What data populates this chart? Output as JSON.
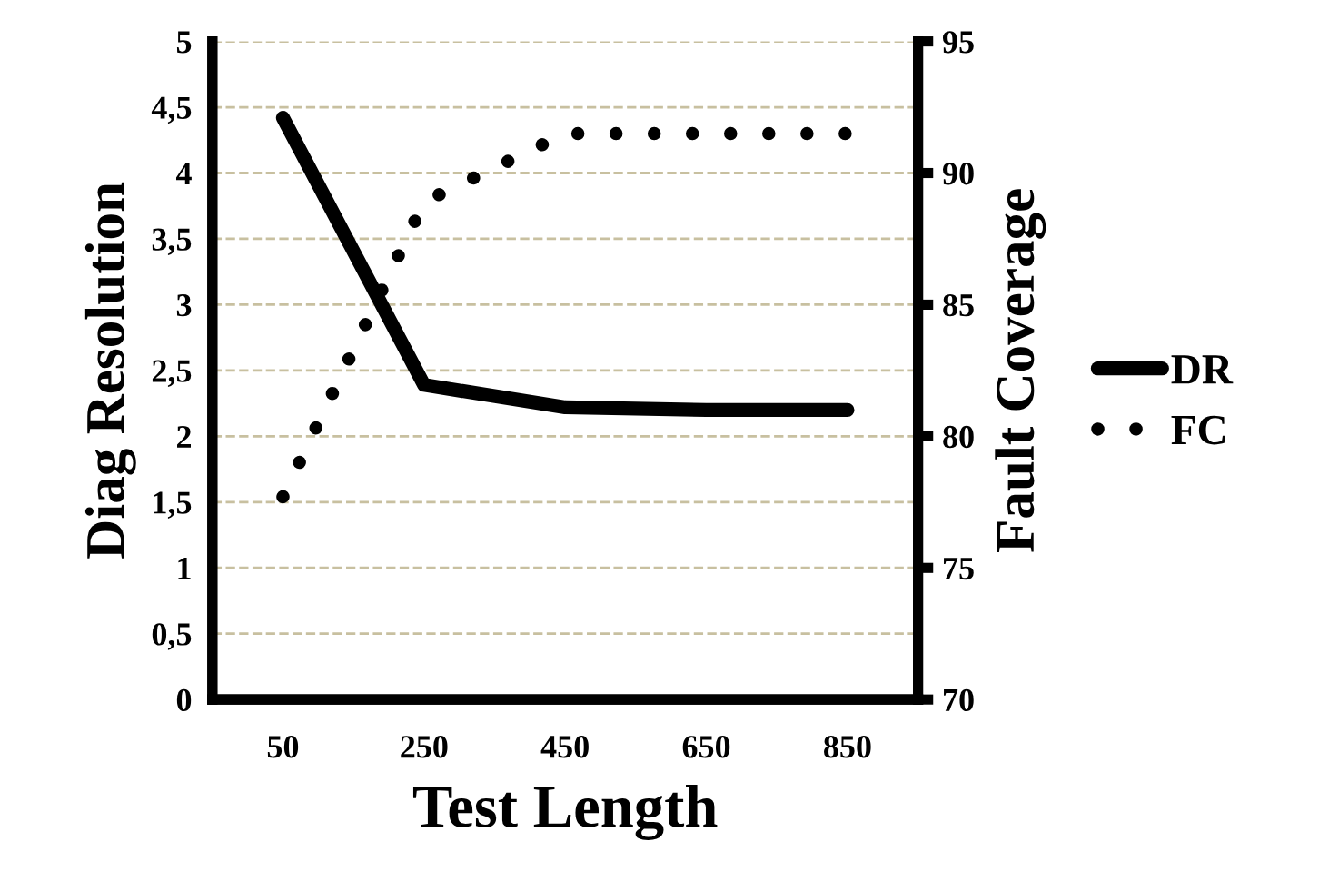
{
  "chart_data": {
    "type": "line",
    "categories": [
      "50",
      "250",
      "450",
      "650",
      "850"
    ],
    "xlabel": "Test Length",
    "ylabel": "Diag Resolution",
    "y2label": "Fault Coverage",
    "series": [
      {
        "name": "DR",
        "color": "#000000",
        "line_style": "solid",
        "values": [
          4.42,
          2.39,
          2.22,
          2.2,
          2.2
        ]
      },
      {
        "name": "FC",
        "color": "#000000",
        "line_style": "dotted",
        "axis": "y2",
        "values": [
          77.7,
          88.9,
          91.5,
          91.5,
          91.5
        ]
      }
    ],
    "ylim": [
      0,
      5
    ],
    "yticks": [
      0,
      {
        "value": 0.5,
        "label": "0,5"
      },
      1,
      {
        "value": 1.5,
        "label": "1,5"
      },
      2,
      {
        "value": 2.5,
        "label": "2,5"
      },
      3,
      {
        "value": 3.5,
        "label": "3,5"
      },
      4,
      {
        "value": 4.5,
        "label": "4,5"
      },
      5
    ],
    "y2lim": [
      70,
      95
    ],
    "y2ticks": [
      70,
      75,
      80,
      85,
      90,
      95
    ],
    "grid": "y",
    "legend": "right",
    "marker": "none"
  }
}
